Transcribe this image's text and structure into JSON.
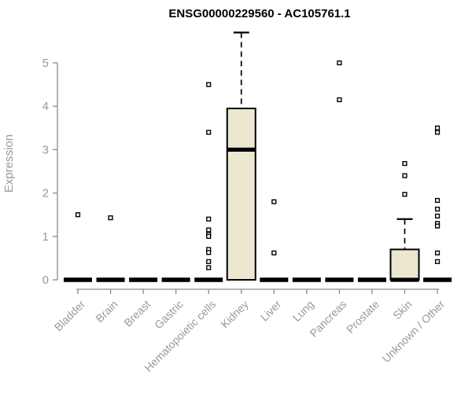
{
  "chart_data": {
    "type": "boxplot",
    "title": "ENSG00000229560 - AC105761.1",
    "xlabel": "",
    "ylabel": "Expression",
    "ylim": [
      0,
      5
    ],
    "yticks": [
      0,
      1,
      2,
      3,
      4,
      5
    ],
    "grid": false,
    "legend": "none",
    "categories": [
      "Bladder",
      "Brain",
      "Breast",
      "Gastric",
      "Hematopoietic cells",
      "Kidney",
      "Liver",
      "Lung",
      "Pancreas",
      "Prostate",
      "Skin",
      "Unknown / Other"
    ],
    "boxes": [
      {
        "category": "Bladder",
        "q1": 0,
        "median": 0,
        "q3": 0,
        "whisker_low": 0,
        "whisker_high": 0,
        "outliers": [
          1.5
        ]
      },
      {
        "category": "Brain",
        "q1": 0,
        "median": 0,
        "q3": 0,
        "whisker_low": 0,
        "whisker_high": 0,
        "outliers": [
          1.43
        ]
      },
      {
        "category": "Breast",
        "q1": 0,
        "median": 0,
        "q3": 0,
        "whisker_low": 0,
        "whisker_high": 0,
        "outliers": []
      },
      {
        "category": "Gastric",
        "q1": 0,
        "median": 0,
        "q3": 0,
        "whisker_low": 0,
        "whisker_high": 0,
        "outliers": []
      },
      {
        "category": "Hematopoietic cells",
        "q1": 0,
        "median": 0,
        "q3": 0,
        "whisker_low": 0,
        "whisker_high": 0,
        "outliers": [
          4.5,
          3.4,
          1.4,
          1.15,
          1.05,
          1.0,
          0.7,
          0.63,
          0.42,
          0.28
        ]
      },
      {
        "category": "Kidney",
        "q1": 0,
        "median": 3.0,
        "q3": 3.95,
        "whisker_low": 0,
        "whisker_high": 5.7,
        "outliers": []
      },
      {
        "category": "Liver",
        "q1": 0,
        "median": 0,
        "q3": 0,
        "whisker_low": 0,
        "whisker_high": 0,
        "outliers": [
          1.8,
          0.62
        ]
      },
      {
        "category": "Lung",
        "q1": 0,
        "median": 0,
        "q3": 0,
        "whisker_low": 0,
        "whisker_high": 0,
        "outliers": []
      },
      {
        "category": "Pancreas",
        "q1": 0,
        "median": 0,
        "q3": 0,
        "whisker_low": 0,
        "whisker_high": 0,
        "outliers": [
          5.0,
          4.15
        ]
      },
      {
        "category": "Prostate",
        "q1": 0,
        "median": 0,
        "q3": 0,
        "whisker_low": 0,
        "whisker_high": 0,
        "outliers": []
      },
      {
        "category": "Skin",
        "q1": 0,
        "median": 0,
        "q3": 0.7,
        "whisker_low": 0,
        "whisker_high": 1.4,
        "outliers": [
          2.68,
          2.4,
          1.97
        ]
      },
      {
        "category": "Unknown / Other",
        "q1": 0,
        "median": 0,
        "q3": 0,
        "whisker_low": 0,
        "whisker_high": 0,
        "outliers": [
          3.5,
          3.4,
          1.83,
          1.63,
          1.47,
          1.3,
          1.24,
          0.62,
          0.42
        ]
      }
    ],
    "colors": {
      "box_fill": "#ece7cf",
      "box_stroke": "#000000",
      "median": "#000000",
      "whisker": "#000000",
      "outlier_stroke": "#000000",
      "outlier_fill": "#ffffff",
      "axis": "#8a8a8a",
      "tick_labels": "#999999",
      "title": "#000000",
      "background": "#ffffff"
    }
  }
}
